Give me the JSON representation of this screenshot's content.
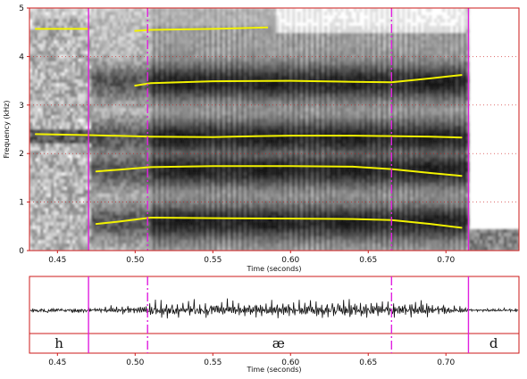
{
  "colors": {
    "frame": "#cc1a1a",
    "grid": "#cc1a1a",
    "formant": "#f2f200",
    "boundary": "#e020e0",
    "waveform": "#111111",
    "spectrogram_ink": "#1a1a1a"
  },
  "chart_data": [
    {
      "type": "line",
      "kind": "spectrogram",
      "ylabel": "Frequency (kHz)",
      "xlabel": "Time (seconds)",
      "xlim": [
        0.432,
        0.747
      ],
      "ylim": [
        0,
        5
      ],
      "x_ticks": [
        "0.45",
        "0.50",
        "0.55",
        "0.60",
        "0.65",
        "0.70"
      ],
      "x_tick_values": [
        0.45,
        0.5,
        0.55,
        0.6,
        0.65,
        0.7
      ],
      "y_ticks": [
        "0",
        "1",
        "2",
        "3",
        "4",
        "5"
      ],
      "y_tick_values": [
        0,
        1,
        2,
        3,
        4,
        5
      ],
      "grid": "horizontal dotted",
      "segment_boundaries": [
        0.47,
        0.7145
      ],
      "vowel_region_markers": [
        0.508,
        0.665
      ],
      "series": [
        {
          "x": [
            0.475,
            0.49,
            0.51,
            0.55,
            0.6,
            0.64,
            0.665,
            0.69,
            0.71
          ],
          "y": [
            0.55,
            0.6,
            0.68,
            0.67,
            0.66,
            0.65,
            0.63,
            0.55,
            0.47
          ]
        },
        {
          "x": [
            0.475,
            0.49,
            0.51,
            0.55,
            0.6,
            0.64,
            0.665,
            0.69,
            0.71
          ],
          "y": [
            1.63,
            1.67,
            1.72,
            1.74,
            1.74,
            1.73,
            1.68,
            1.6,
            1.54
          ]
        },
        {
          "x": [
            0.436,
            0.47,
            0.51,
            0.55,
            0.58,
            0.6,
            0.64,
            0.665,
            0.69,
            0.71
          ],
          "y": [
            2.4,
            2.38,
            2.35,
            2.34,
            2.36,
            2.37,
            2.37,
            2.36,
            2.35,
            2.33
          ]
        },
        {
          "x": [
            0.5,
            0.51,
            0.55,
            0.6,
            0.64,
            0.665,
            0.69,
            0.71
          ],
          "y": [
            3.4,
            3.45,
            3.49,
            3.5,
            3.48,
            3.47,
            3.55,
            3.62
          ]
        },
        {
          "x": [
            0.436,
            0.47
          ],
          "y": [
            4.57,
            4.57
          ]
        },
        {
          "x": [
            0.5,
            0.51,
            0.55,
            0.585
          ],
          "y": [
            4.53,
            4.55,
            4.57,
            4.6
          ]
        }
      ]
    },
    {
      "type": "line",
      "kind": "waveform-with-segmentation",
      "xlabel": "Time (seconds)",
      "xlim": [
        0.432,
        0.747
      ],
      "x_ticks": [
        "0.45",
        "0.50",
        "0.55",
        "0.60",
        "0.65",
        "0.70"
      ],
      "x_tick_values": [
        0.45,
        0.5,
        0.55,
        0.6,
        0.65,
        0.7
      ],
      "segments": [
        {
          "label": "h",
          "start": 0.432,
          "end": 0.47
        },
        {
          "label": "æ",
          "start": 0.47,
          "end": 0.7145
        },
        {
          "label": "d",
          "start": 0.7145,
          "end": 0.747
        }
      ]
    }
  ]
}
